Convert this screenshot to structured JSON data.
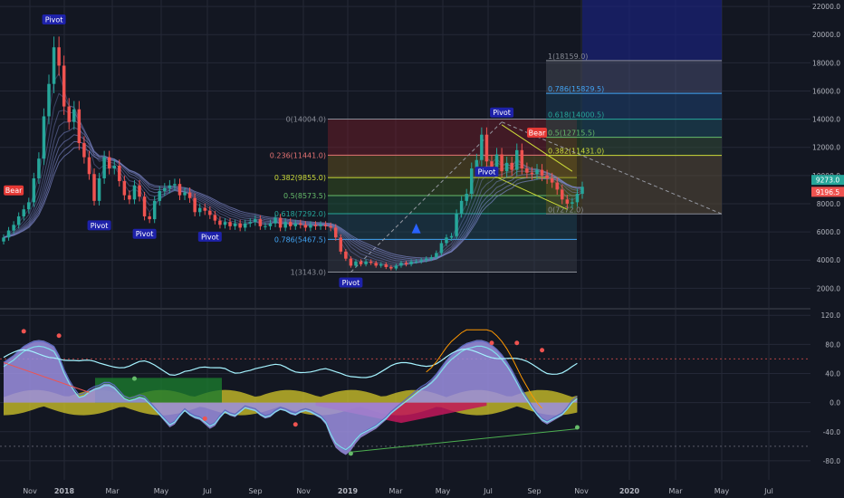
{
  "colors": {
    "background": "#131722",
    "grid": "#242837",
    "bull": "#26a69a",
    "bear": "#ef5350",
    "axis_text": "#b2b5be",
    "ribbon": "#7c86c8",
    "pivot_bg": "#1e22aa",
    "bear_label": "#e53935",
    "price_badge_a": "#26a69a",
    "price_badge_b": "#ef5350",
    "projection_zone": "#1a237e",
    "osc_fill": "#9c8fe0",
    "osc_line": "#80deea",
    "osc_yellow": "#d4c82a",
    "osc_red": "#c2185b",
    "osc_green": "#1b7a2e"
  },
  "chart_data": [
    {
      "type": "candlestick",
      "title": "",
      "x_ticks": [
        "Nov",
        "2018",
        "Mar",
        "May",
        "Jul",
        "Sep",
        "Nov",
        "2019",
        "Mar",
        "May",
        "Jul",
        "Sep",
        "Nov",
        "2020",
        "Mar",
        "May",
        "Jul"
      ],
      "y_ticks": [
        2000,
        4000,
        6000,
        8000,
        10000,
        12000,
        14000,
        16000,
        18000,
        20000,
        22000
      ],
      "y_tick_labels": [
        "2000.0",
        "4000.0",
        "6000.0",
        "8000.0",
        "10000.0",
        "12000.0",
        "14000.0",
        "16000.0",
        "18000.0",
        "20000.0",
        "22000.0"
      ],
      "ylim": [
        800,
        22200
      ],
      "grid": true,
      "closes_weekly": [
        5600,
        6100,
        6500,
        7100,
        7600,
        8100,
        9800,
        11200,
        14200,
        16500,
        19100,
        17800,
        14900,
        13800,
        14700,
        12300,
        11300,
        10100,
        8200,
        9800,
        11300,
        10500,
        10700,
        9600,
        8600,
        8300,
        9300,
        8500,
        7100,
        6900,
        8200,
        8900,
        9100,
        9300,
        9400,
        8600,
        8800,
        8400,
        7400,
        7700,
        7500,
        7200,
        6800,
        6500,
        6700,
        6400,
        6600,
        6300,
        6600,
        6700,
        6900,
        6400,
        6400,
        6600,
        7000,
        6300,
        6700,
        6400,
        6600,
        6500,
        6300,
        6500,
        6400,
        6500,
        6400,
        6300,
        5600,
        4600,
        4100,
        3600,
        3900,
        3700,
        3900,
        3800,
        3600,
        3700,
        3500,
        3400,
        3600,
        3800,
        3700,
        3900,
        3900,
        4000,
        4100,
        4200,
        4500,
        5200,
        5600,
        5700,
        7300,
        8200,
        8700,
        10500,
        11100,
        12900,
        11000,
        10600,
        11500,
        10300,
        10900,
        10400,
        11800,
        10500,
        10200,
        10100,
        10400,
        10000,
        9800,
        9500,
        9000,
        8300,
        8000,
        8100,
        8700,
        9200
      ],
      "fib_retracement_left": [
        {
          "label": "0(14004.0)",
          "value": 14004.0
        },
        {
          "label": "0.236(11441.0)",
          "value": 11441.0
        },
        {
          "label": "0.382(9855.0)",
          "value": 9855.0
        },
        {
          "label": "0.5(8573.5)",
          "value": 8573.5
        },
        {
          "label": "0.618(7292.0)",
          "value": 7292.0
        },
        {
          "label": "0.786(5467.5)",
          "value": 5467.5
        },
        {
          "label": "1(3143.0)",
          "value": 3143.0
        }
      ],
      "fib_extension_right": [
        {
          "label": "1(18159.0)",
          "value": 18159.0
        },
        {
          "label": "0.786(15829.5)",
          "value": 15829.5
        },
        {
          "label": "0.618(14000.5)",
          "value": 14000.5
        },
        {
          "label": "0.5(12715.5)",
          "value": 12715.5
        },
        {
          "label": "0.382(11431.0)",
          "value": 11431.0
        },
        {
          "label": "0(7272.0)",
          "value": 7272.0
        }
      ],
      "pivot_labels": [
        {
          "text": "Pivot",
          "week": 10,
          "value": 20400,
          "position": "above"
        },
        {
          "text": "Pivot",
          "week": 19,
          "value": 7200,
          "position": "below"
        },
        {
          "text": "Pivot",
          "week": 28,
          "value": 6600,
          "position": "below"
        },
        {
          "text": "Pivot",
          "week": 41,
          "value": 6400,
          "position": "below"
        },
        {
          "text": "Pivot",
          "week": 69,
          "value": 3143,
          "position": "below"
        },
        {
          "text": "Pivot",
          "week": 96,
          "value": 9600,
          "position": "above"
        },
        {
          "text": "Pivot",
          "week": 99,
          "value": 13800,
          "position": "above"
        }
      ],
      "bear_labels": [
        {
          "text": "Bear",
          "week": 2,
          "value": 8400
        },
        {
          "text": "Bear",
          "week": 106,
          "value": 12500
        }
      ],
      "price_badges": [
        {
          "text": "9273.0",
          "value": 9273.0
        },
        {
          "text": "9196.5",
          "value": 9196.5
        }
      ]
    },
    {
      "type": "oscillator",
      "title": "",
      "y_ticks": [
        -80,
        -40,
        0,
        40,
        80,
        120
      ],
      "y_tick_labels": [
        "-80.0",
        "-40.0",
        "0.0",
        "40.0",
        "80.0",
        "120.0"
      ],
      "ylim": [
        -100,
        124
      ],
      "reference_lines": [
        60,
        -60
      ],
      "wave_weekly": [
        55,
        60,
        65,
        72,
        78,
        82,
        85,
        86,
        85,
        82,
        78,
        65,
        45,
        30,
        18,
        8,
        10,
        16,
        20,
        22,
        26,
        26,
        22,
        14,
        6,
        3,
        5,
        8,
        6,
        -2,
        -10,
        -18,
        -26,
        -34,
        -30,
        -20,
        -12,
        -18,
        -22,
        -24,
        -30,
        -36,
        -32,
        -22,
        -14,
        -18,
        -20,
        -14,
        -8,
        -10,
        -12,
        -18,
        -22,
        -20,
        -14,
        -10,
        -12,
        -16,
        -18,
        -14,
        -12,
        -14,
        -18,
        -22,
        -30,
        -48,
        -62,
        -68,
        -72,
        -66,
        -56,
        -48,
        -44,
        -40,
        -36,
        -30,
        -24,
        -16,
        -10,
        -4,
        2,
        8,
        14,
        20,
        24,
        30,
        38,
        48,
        58,
        66,
        72,
        78,
        82,
        84,
        86,
        86,
        84,
        80,
        74,
        66,
        56,
        44,
        30,
        16,
        4,
        -8,
        -18,
        -26,
        -30,
        -26,
        -22,
        -18,
        -10,
        0,
        6
      ]
    }
  ]
}
